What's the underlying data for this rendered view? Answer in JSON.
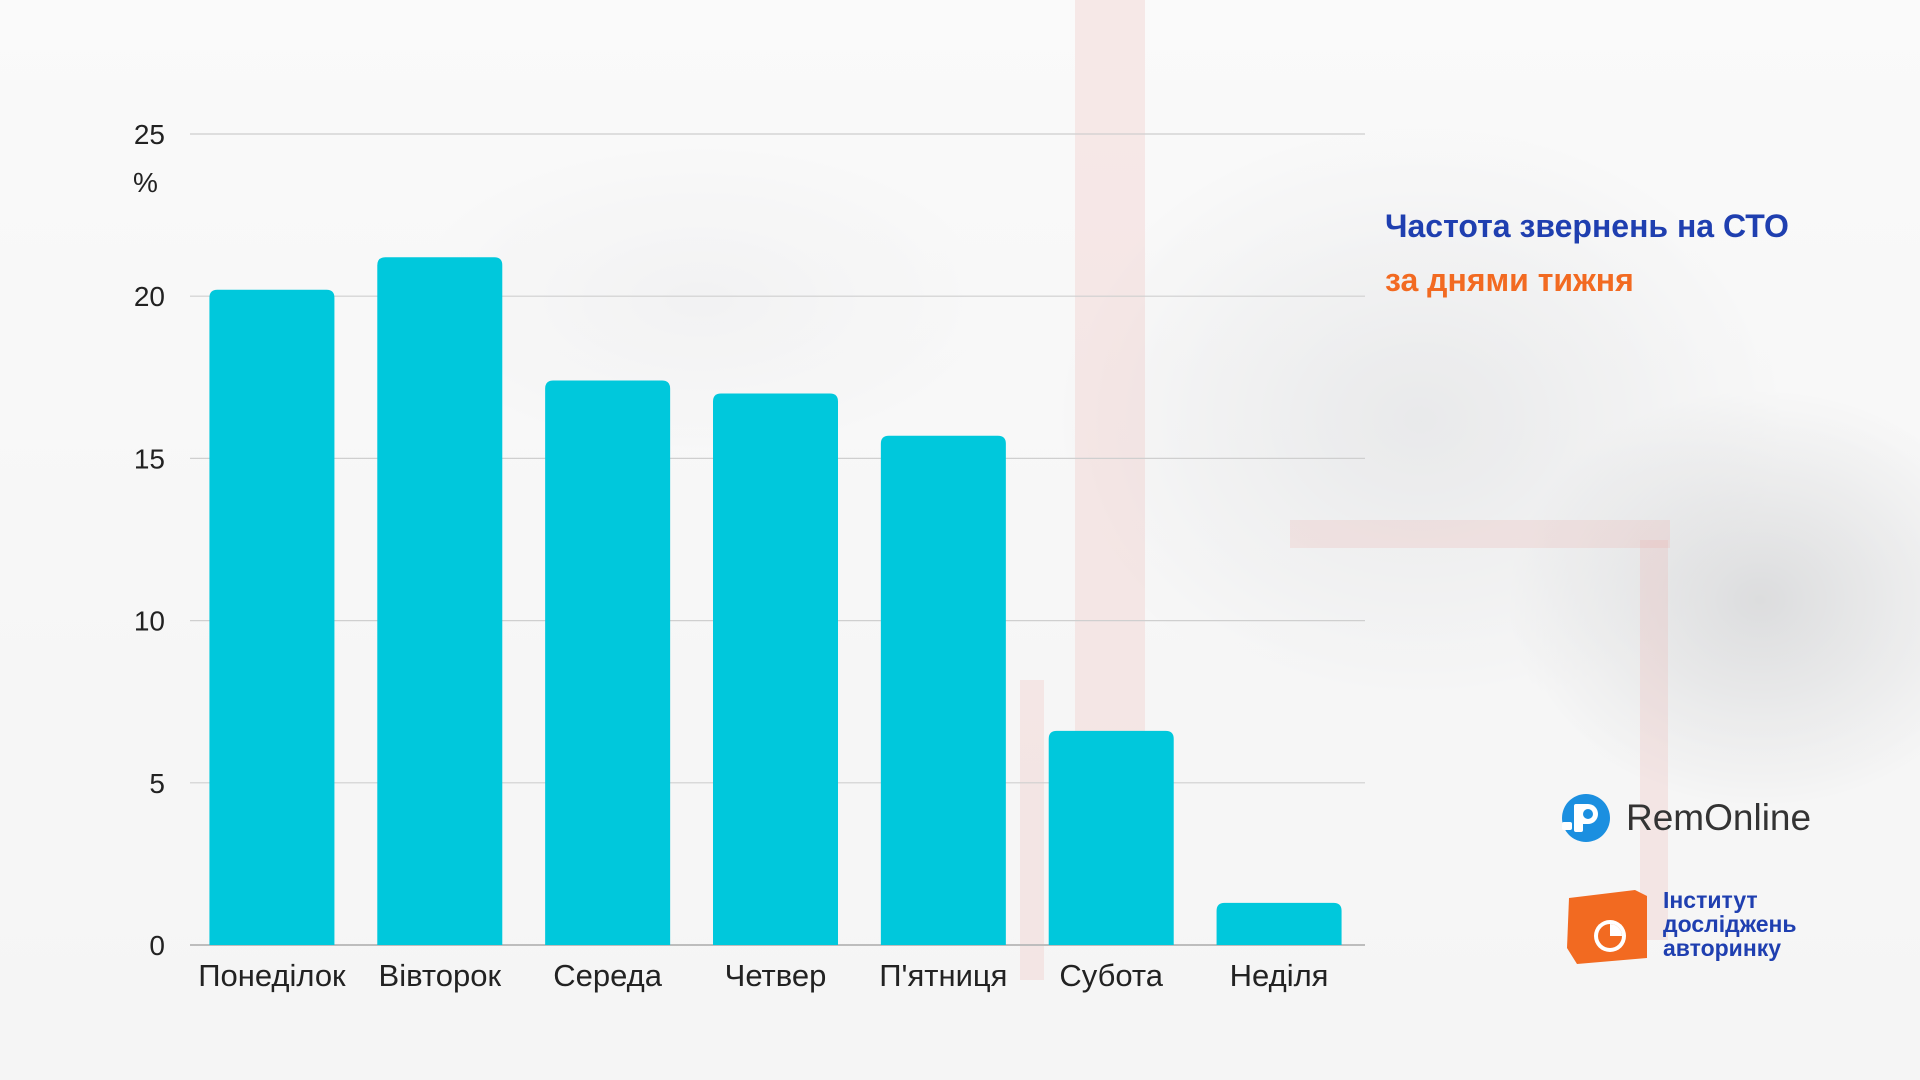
{
  "chart_data": {
    "type": "bar",
    "title": "Частота звернень на СТО",
    "subtitle": "за днями тижня",
    "categories": [
      "Понеділок",
      "Вівторок",
      "Середа",
      "Четвер",
      "П'ятниця",
      "Субота",
      "Неділя"
    ],
    "values": [
      20.2,
      21.2,
      17.4,
      17.0,
      15.7,
      6.6,
      1.3
    ],
    "ylabel": "%",
    "ylim": [
      0,
      25
    ],
    "yticks": [
      "0",
      "5",
      "10",
      "15",
      "20",
      "25"
    ],
    "grid": true,
    "bar_color": "#00c8dc"
  },
  "logos": {
    "remonline": "RemOnline",
    "institute_lines": [
      "Інститут",
      "досліджень",
      "авторинку"
    ]
  },
  "colors": {
    "title": "#1f3fb0",
    "subtitle": "#f26a21",
    "bars": "#00c8dc"
  }
}
